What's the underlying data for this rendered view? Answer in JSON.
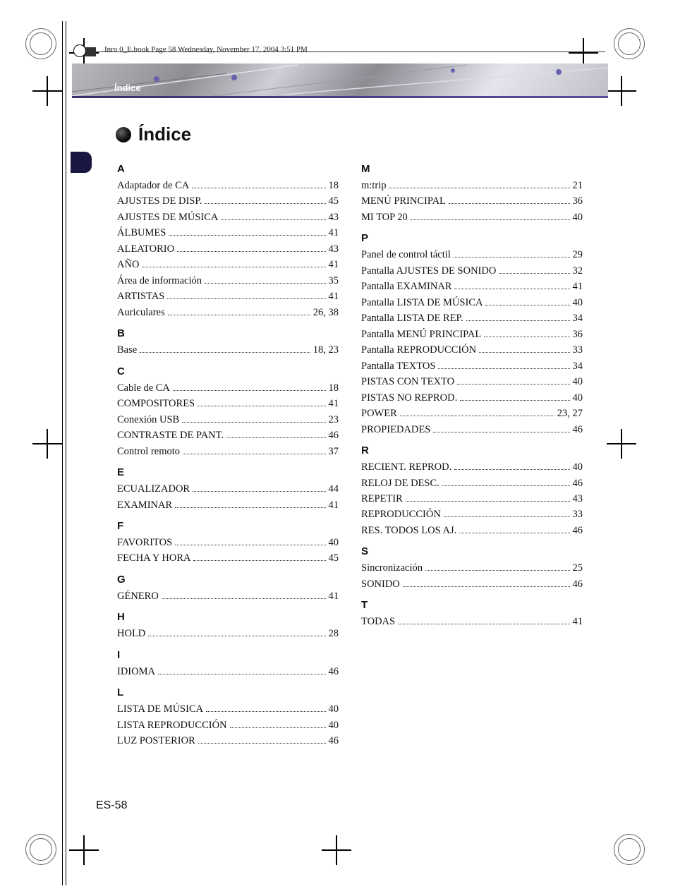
{
  "meta": {
    "book_line": "Inro 0_E.book  Page 58  Wednesday, November 17, 2004  3:51 PM"
  },
  "header": {
    "tab_label": "Índice",
    "title": "Índice",
    "page_number": "ES-58"
  },
  "index": {
    "col1": [
      {
        "letter": "A",
        "items": [
          {
            "label": "Adaptador de CA",
            "page": "18"
          },
          {
            "label": "AJUSTES DE DISP.",
            "page": "45"
          },
          {
            "label": "AJUSTES DE MÚSICA",
            "page": "43"
          },
          {
            "label": "ÁLBUMES",
            "page": "41"
          },
          {
            "label": "ALEATORIO",
            "page": "43"
          },
          {
            "label": "AÑO",
            "page": "41"
          },
          {
            "label": "Área de información",
            "page": "35"
          },
          {
            "label": "ARTISTAS",
            "page": "41"
          },
          {
            "label": "Auriculares",
            "page": "26, 38"
          }
        ]
      },
      {
        "letter": "B",
        "items": [
          {
            "label": "Base",
            "page": "18, 23"
          }
        ]
      },
      {
        "letter": "C",
        "items": [
          {
            "label": "Cable de CA",
            "page": "18"
          },
          {
            "label": "COMPOSITORES",
            "page": "41"
          },
          {
            "label": "Conexión USB",
            "page": "23"
          },
          {
            "label": "CONTRASTE DE PANT.",
            "page": "46"
          },
          {
            "label": "Control remoto",
            "page": "37"
          }
        ]
      },
      {
        "letter": "E",
        "items": [
          {
            "label": "ECUALIZADOR",
            "page": "44"
          },
          {
            "label": "EXAMINAR",
            "page": "41"
          }
        ]
      },
      {
        "letter": "F",
        "items": [
          {
            "label": "FAVORITOS",
            "page": "40"
          },
          {
            "label": "FECHA Y HORA",
            "page": "45"
          }
        ]
      },
      {
        "letter": "G",
        "items": [
          {
            "label": "GÉNERO",
            "page": "41"
          }
        ]
      },
      {
        "letter": "H",
        "items": [
          {
            "label": "HOLD",
            "page": "28"
          }
        ]
      },
      {
        "letter": "I",
        "items": [
          {
            "label": "IDIOMA",
            "page": "46"
          }
        ]
      },
      {
        "letter": "L",
        "items": [
          {
            "label": "LISTA DE MÚSICA",
            "page": "40"
          },
          {
            "label": "LISTA REPRODUCCIÓN",
            "page": "40"
          },
          {
            "label": "LUZ POSTERIOR",
            "page": "46"
          }
        ]
      }
    ],
    "col2": [
      {
        "letter": "M",
        "items": [
          {
            "label": "m:trip",
            "page": "21"
          },
          {
            "label": "MENÚ PRINCIPAL",
            "page": "36"
          },
          {
            "label": "MI TOP 20",
            "page": "40"
          }
        ]
      },
      {
        "letter": "P",
        "items": [
          {
            "label": "Panel de control táctil",
            "page": "29"
          },
          {
            "label": "Pantalla AJUSTES DE SONIDO",
            "page": "32"
          },
          {
            "label": "Pantalla EXAMINAR",
            "page": "41"
          },
          {
            "label": "Pantalla LISTA DE MÚSICA",
            "page": "40"
          },
          {
            "label": "Pantalla LISTA DE REP.",
            "page": "34"
          },
          {
            "label": "Pantalla MENÚ PRINCIPAL",
            "page": "36"
          },
          {
            "label": "Pantalla REPRODUCCIÓN",
            "page": "33"
          },
          {
            "label": "Pantalla TEXTOS",
            "page": "34"
          },
          {
            "label": "PISTAS CON TEXTO",
            "page": "40"
          },
          {
            "label": "PISTAS NO REPROD.",
            "page": "40"
          },
          {
            "label": "POWER",
            "page": "23, 27"
          },
          {
            "label": "PROPIEDADES",
            "page": "46"
          }
        ]
      },
      {
        "letter": "R",
        "items": [
          {
            "label": "RECIENT. REPROD.",
            "page": "40"
          },
          {
            "label": "RELOJ DE DESC.",
            "page": "46"
          },
          {
            "label": "REPETIR",
            "page": "43"
          },
          {
            "label": "REPRODUCCIÓN",
            "page": "33"
          },
          {
            "label": "RES. TODOS LOS AJ.",
            "page": "46"
          }
        ]
      },
      {
        "letter": "S",
        "items": [
          {
            "label": "Sincronización",
            "page": "25"
          },
          {
            "label": "SONIDO",
            "page": "46"
          }
        ]
      },
      {
        "letter": "T",
        "items": [
          {
            "label": "TODAS",
            "page": "41"
          }
        ]
      }
    ]
  },
  "style": {
    "body_font": "Times New Roman",
    "heading_font": "Arial",
    "text_color": "#111111",
    "accent_color": "#3a2f6b",
    "gradient_colors": [
      "#b9b9bd",
      "#8d8d93",
      "#cfd0d7",
      "#8b8b92",
      "#e5e6ed",
      "#c0c0c7"
    ]
  }
}
